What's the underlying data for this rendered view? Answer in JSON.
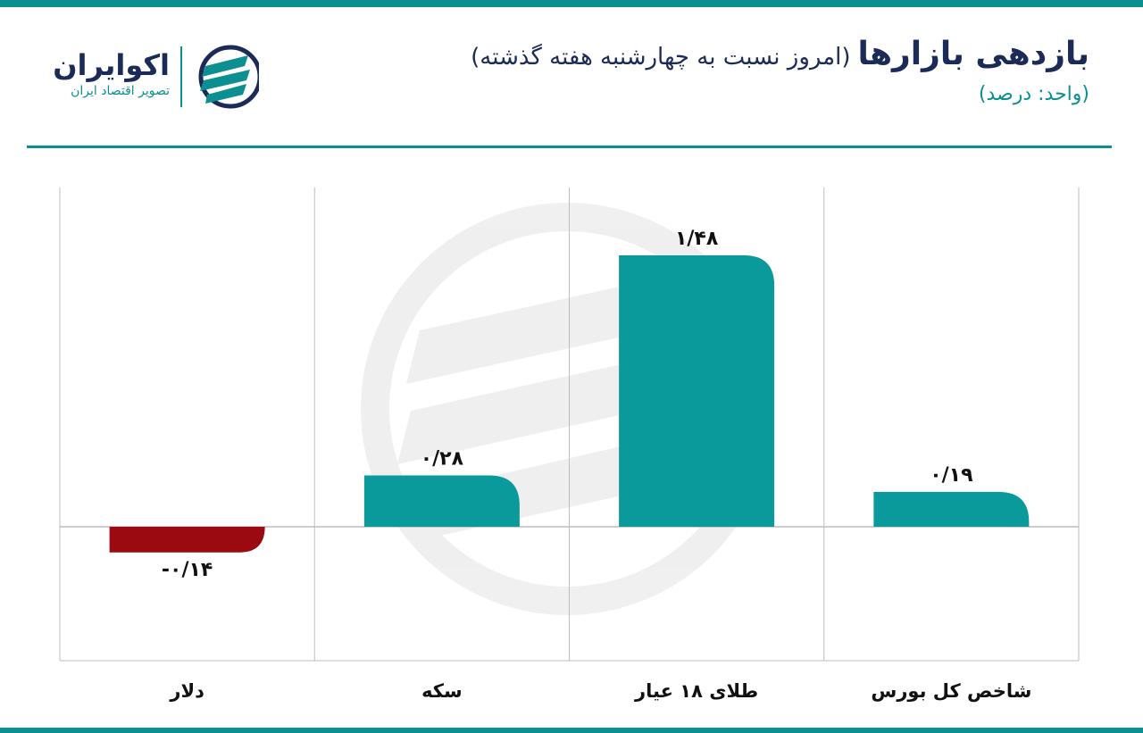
{
  "header": {
    "title_main": "بازدهی بازارها",
    "title_sub": "(امروز نسبت به چهارشنبه هفته گذشته)",
    "unit": "(واحد: درصد)"
  },
  "logo": {
    "name": "اکوایران",
    "tagline": "تصویر اقتصاد ایران",
    "icon": "ecoiran-logo-icon"
  },
  "colors": {
    "accent": "#0b8f90",
    "positive": "#0b9a9b",
    "negative": "#9b0a10",
    "text_dark": "#1b2a57",
    "grid": "#bdbdbd"
  },
  "chart_data": {
    "type": "bar",
    "title": "بازدهی بازارها",
    "subtitle": "(امروز نسبت به چهارشنبه هفته گذشته)",
    "unit": "(واحد: درصد)",
    "categories": [
      "شاخص کل بورس",
      "طلای ۱۸ عیار",
      "سکه",
      "دلار"
    ],
    "values": [
      0.19,
      1.48,
      0.28,
      -0.14
    ],
    "value_labels": [
      "۰/۱۹",
      "۱/۴۸",
      "۰/۲۸",
      "-۰/۱۴"
    ],
    "ylim": [
      -0.73,
      1.85
    ],
    "grid": true,
    "legend": "none"
  }
}
